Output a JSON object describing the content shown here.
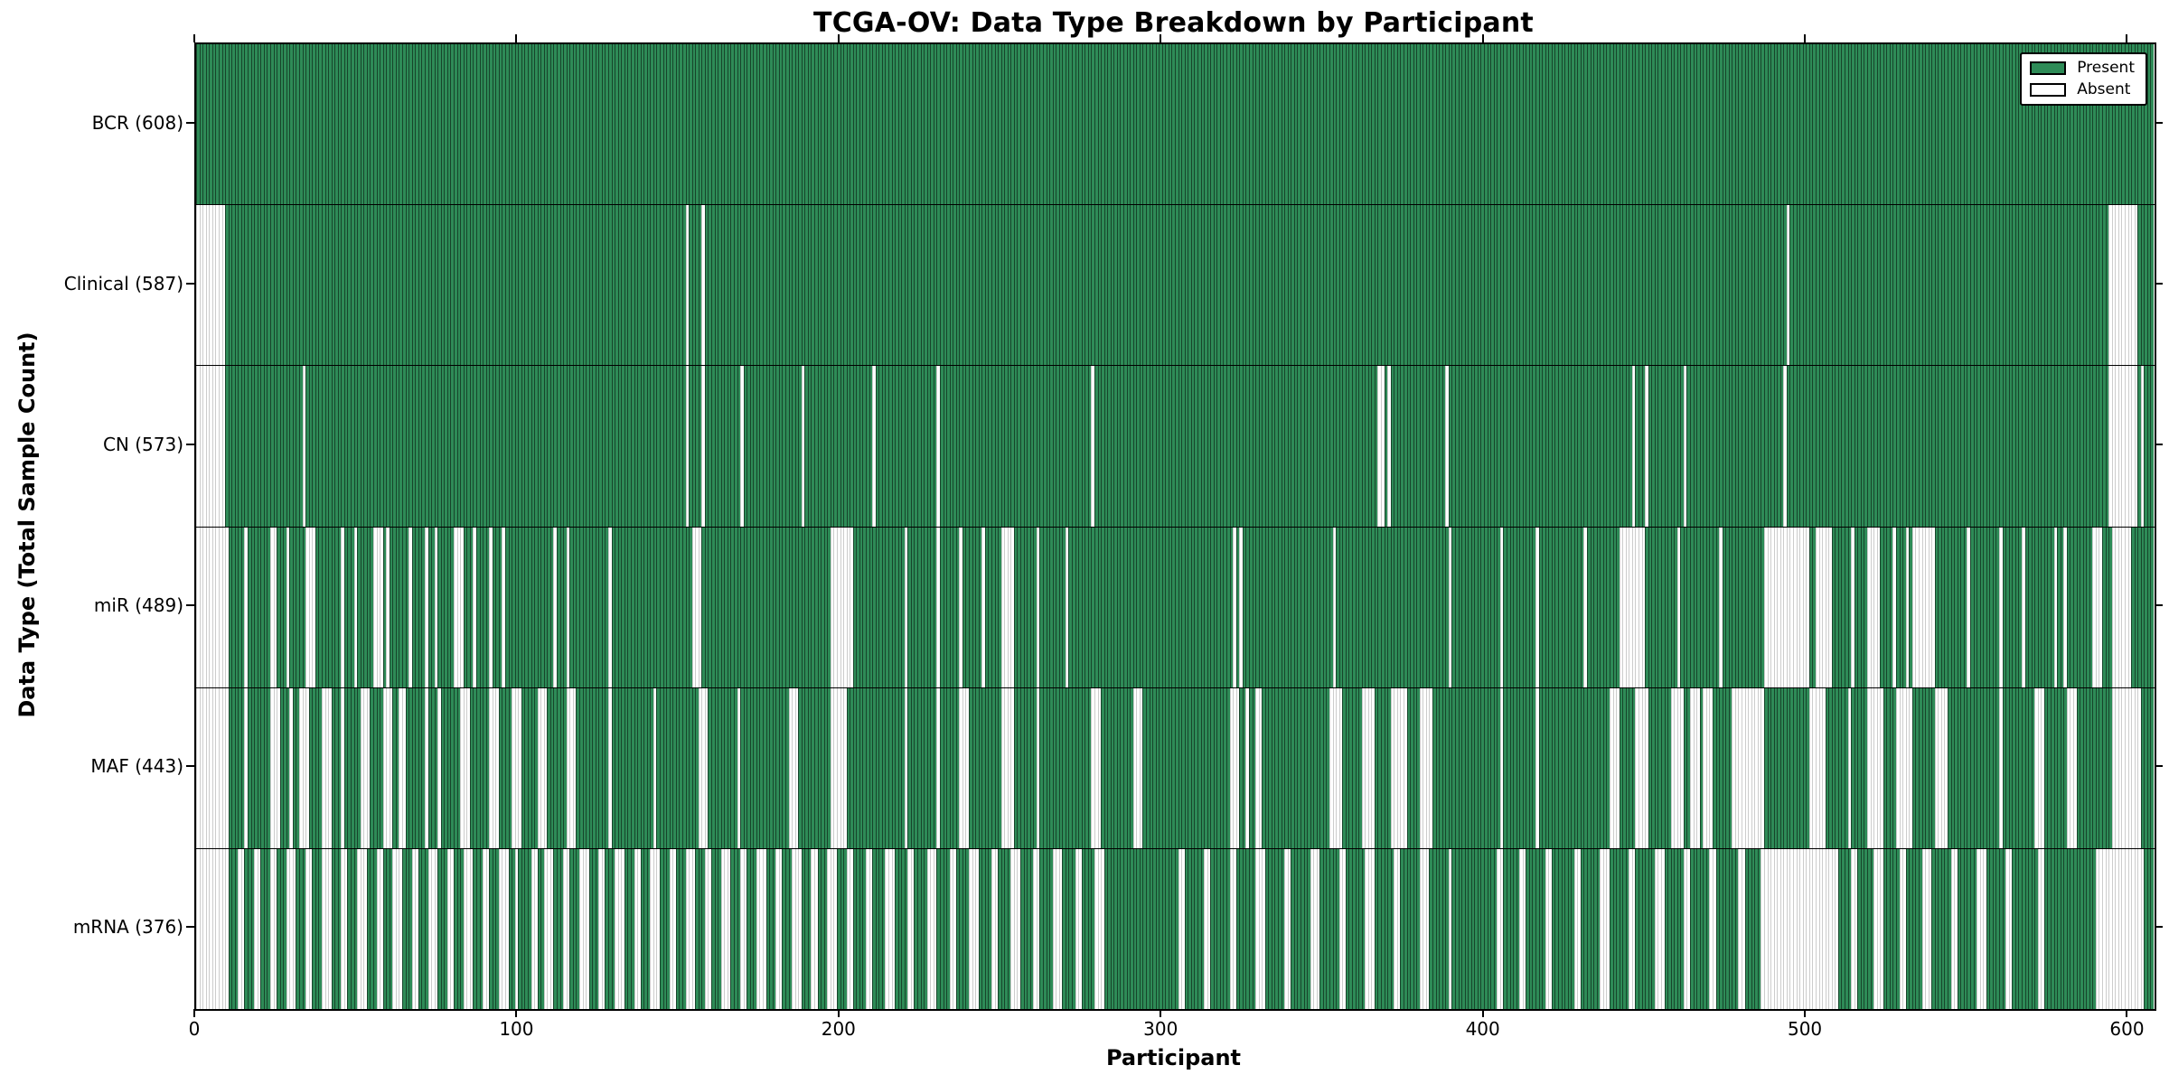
{
  "chart_data": {
    "type": "heatmap",
    "title": "TCGA-OV: Data Type Breakdown by Participant",
    "xlabel": "Participant",
    "ylabel": "Data Type (Total Sample Count)",
    "x_range": [
      0,
      608
    ],
    "xticks": [
      0,
      100,
      200,
      300,
      400,
      500,
      600
    ],
    "n_participants": 608,
    "grid": false,
    "colors": {
      "present": "#2e8b57",
      "absent": "#ffffff",
      "bar_edge": "#000000",
      "axis": "#000000"
    },
    "legend": {
      "position": "upper right",
      "entries": [
        {
          "label": "Present",
          "color": "#2e8b57"
        },
        {
          "label": "Absent",
          "color": "#ffffff"
        }
      ]
    },
    "rows": [
      {
        "name": "BCR",
        "label": "BCR (608)",
        "present_count": 608,
        "absent_count": 0,
        "absent_ranges": []
      },
      {
        "name": "Clinical",
        "label": "Clinical (587)",
        "present_count": 587,
        "absent_count": 21,
        "absent_ranges": [
          [
            0,
            8
          ],
          [
            152,
            152
          ],
          [
            157,
            157
          ],
          [
            494,
            494
          ],
          [
            594,
            602
          ]
        ]
      },
      {
        "name": "CN",
        "label": "CN (573)",
        "present_count": 573,
        "absent_count": 35,
        "absent_ranges": [
          [
            0,
            8
          ],
          [
            33,
            33
          ],
          [
            152,
            152
          ],
          [
            157,
            157
          ],
          [
            169,
            169
          ],
          [
            188,
            188
          ],
          [
            210,
            210
          ],
          [
            230,
            230
          ],
          [
            278,
            278
          ],
          [
            367,
            368
          ],
          [
            370,
            370
          ],
          [
            388,
            388
          ],
          [
            446,
            446
          ],
          [
            450,
            450
          ],
          [
            462,
            462
          ],
          [
            493,
            493
          ],
          [
            594,
            602
          ],
          [
            604,
            604
          ]
        ]
      },
      {
        "name": "miR",
        "label": "miR (489)",
        "present_count": 489,
        "absent_count": 119,
        "absent_ranges": [
          [
            0,
            9
          ],
          [
            15,
            15
          ],
          [
            23,
            24
          ],
          [
            28,
            28
          ],
          [
            34,
            36
          ],
          [
            45,
            45
          ],
          [
            49,
            49
          ],
          [
            55,
            57
          ],
          [
            59,
            59
          ],
          [
            66,
            66
          ],
          [
            71,
            71
          ],
          [
            74,
            74
          ],
          [
            80,
            82
          ],
          [
            86,
            86
          ],
          [
            91,
            91
          ],
          [
            95,
            95
          ],
          [
            111,
            111
          ],
          [
            115,
            115
          ],
          [
            128,
            128
          ],
          [
            154,
            156
          ],
          [
            197,
            203
          ],
          [
            220,
            220
          ],
          [
            230,
            230
          ],
          [
            237,
            237
          ],
          [
            244,
            244
          ],
          [
            250,
            253
          ],
          [
            261,
            261
          ],
          [
            270,
            270
          ],
          [
            322,
            322
          ],
          [
            324,
            324
          ],
          [
            353,
            353
          ],
          [
            389,
            389
          ],
          [
            405,
            405
          ],
          [
            416,
            416
          ],
          [
            431,
            431
          ],
          [
            442,
            449
          ],
          [
            460,
            460
          ],
          [
            473,
            473
          ],
          [
            487,
            500
          ],
          [
            503,
            507
          ],
          [
            514,
            514
          ],
          [
            519,
            522
          ],
          [
            527,
            527
          ],
          [
            531,
            531
          ],
          [
            533,
            539
          ],
          [
            550,
            550
          ],
          [
            560,
            560
          ],
          [
            567,
            567
          ],
          [
            577,
            577
          ],
          [
            580,
            580
          ],
          [
            589,
            591
          ],
          [
            595,
            600
          ]
        ]
      },
      {
        "name": "MAF",
        "label": "MAF (443)",
        "present_count": 443,
        "absent_count": 165,
        "absent_ranges": [
          [
            0,
            9
          ],
          [
            15,
            15
          ],
          [
            23,
            25
          ],
          [
            29,
            29
          ],
          [
            32,
            34
          ],
          [
            39,
            41
          ],
          [
            45,
            45
          ],
          [
            51,
            53
          ],
          [
            58,
            60
          ],
          [
            63,
            64
          ],
          [
            71,
            71
          ],
          [
            75,
            75
          ],
          [
            82,
            84
          ],
          [
            91,
            93
          ],
          [
            98,
            100
          ],
          [
            106,
            108
          ],
          [
            115,
            117
          ],
          [
            128,
            128
          ],
          [
            142,
            142
          ],
          [
            156,
            158
          ],
          [
            168,
            168
          ],
          [
            184,
            186
          ],
          [
            197,
            201
          ],
          [
            220,
            220
          ],
          [
            230,
            230
          ],
          [
            237,
            239
          ],
          [
            250,
            253
          ],
          [
            261,
            261
          ],
          [
            278,
            280
          ],
          [
            291,
            293
          ],
          [
            321,
            323
          ],
          [
            326,
            326
          ],
          [
            329,
            330
          ],
          [
            352,
            355
          ],
          [
            362,
            365
          ],
          [
            371,
            375
          ],
          [
            380,
            383
          ],
          [
            405,
            405
          ],
          [
            416,
            416
          ],
          [
            439,
            441
          ],
          [
            447,
            450
          ],
          [
            458,
            461
          ],
          [
            464,
            466
          ],
          [
            468,
            470
          ],
          [
            477,
            486
          ],
          [
            501,
            505
          ],
          [
            513,
            513
          ],
          [
            519,
            523
          ],
          [
            528,
            532
          ],
          [
            540,
            543
          ],
          [
            560,
            560
          ],
          [
            571,
            573
          ],
          [
            581,
            583
          ],
          [
            595,
            603
          ]
        ]
      },
      {
        "name": "mRNA",
        "label": "mRNA (376)",
        "present_count": 376,
        "absent_count": 232,
        "absent_ranges": [
          [
            0,
            9
          ],
          [
            13,
            14
          ],
          [
            18,
            19
          ],
          [
            23,
            24
          ],
          [
            28,
            30
          ],
          [
            34,
            35
          ],
          [
            39,
            41
          ],
          [
            45,
            46
          ],
          [
            50,
            52
          ],
          [
            56,
            57
          ],
          [
            61,
            63
          ],
          [
            67,
            68
          ],
          [
            72,
            74
          ],
          [
            78,
            79
          ],
          [
            83,
            85
          ],
          [
            89,
            90
          ],
          [
            94,
            96
          ],
          [
            99,
            99
          ],
          [
            104,
            105
          ],
          [
            108,
            110
          ],
          [
            114,
            115
          ],
          [
            119,
            121
          ],
          [
            125,
            126
          ],
          [
            130,
            132
          ],
          [
            136,
            137
          ],
          [
            141,
            143
          ],
          [
            147,
            148
          ],
          [
            152,
            154
          ],
          [
            158,
            159
          ],
          [
            163,
            165
          ],
          [
            169,
            170
          ],
          [
            174,
            176
          ],
          [
            180,
            181
          ],
          [
            185,
            187
          ],
          [
            191,
            192
          ],
          [
            196,
            198
          ],
          [
            202,
            203
          ],
          [
            208,
            209
          ],
          [
            214,
            216
          ],
          [
            221,
            222
          ],
          [
            227,
            229
          ],
          [
            234,
            235
          ],
          [
            240,
            242
          ],
          [
            247,
            248
          ],
          [
            253,
            255
          ],
          [
            260,
            261
          ],
          [
            266,
            268
          ],
          [
            273,
            274
          ],
          [
            279,
            281
          ],
          [
            305,
            306
          ],
          [
            313,
            314
          ],
          [
            321,
            322
          ],
          [
            329,
            331
          ],
          [
            338,
            339
          ],
          [
            346,
            348
          ],
          [
            355,
            356
          ],
          [
            363,
            365
          ],
          [
            372,
            373
          ],
          [
            380,
            382
          ],
          [
            389,
            389
          ],
          [
            404,
            405
          ],
          [
            411,
            412
          ],
          [
            419,
            420
          ],
          [
            428,
            429
          ],
          [
            436,
            438
          ],
          [
            445,
            446
          ],
          [
            453,
            455
          ],
          [
            462,
            463
          ],
          [
            470,
            471
          ],
          [
            479,
            480
          ],
          [
            486,
            509
          ],
          [
            514,
            515
          ],
          [
            521,
            523
          ],
          [
            529,
            530
          ],
          [
            536,
            538
          ],
          [
            545,
            546
          ],
          [
            553,
            555
          ],
          [
            562,
            563
          ],
          [
            572,
            573
          ],
          [
            590,
            604
          ]
        ]
      }
    ]
  }
}
